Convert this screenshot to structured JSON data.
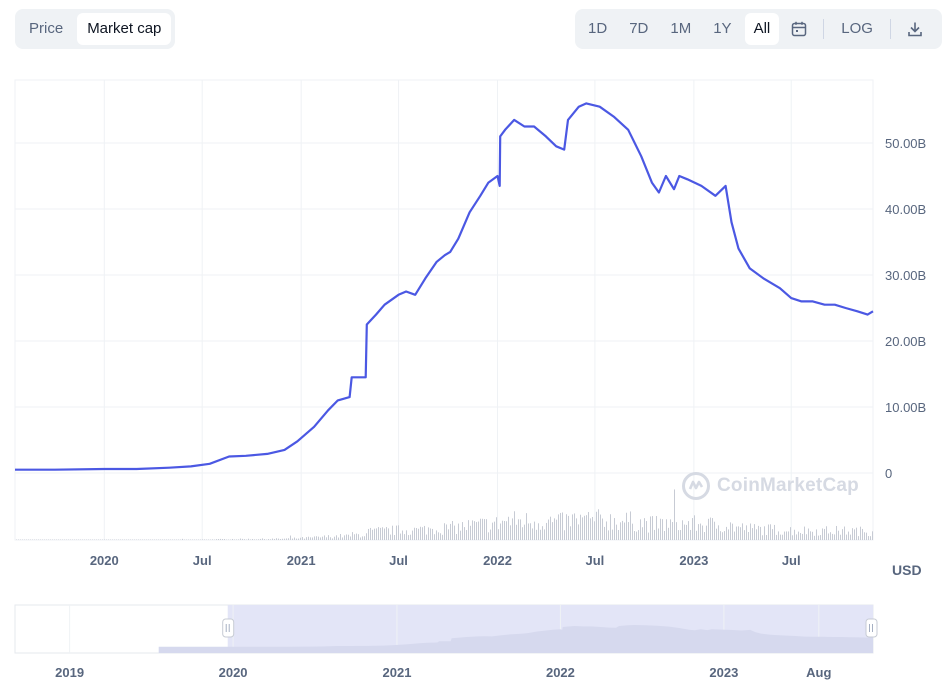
{
  "toolbar": {
    "metric_tabs": [
      {
        "label": "Price",
        "active": false
      },
      {
        "label": "Market cap",
        "active": true
      }
    ],
    "range_tabs": [
      {
        "label": "1D",
        "active": false
      },
      {
        "label": "7D",
        "active": false
      },
      {
        "label": "1M",
        "active": false
      },
      {
        "label": "1Y",
        "active": false
      },
      {
        "label": "All",
        "active": true
      }
    ],
    "calendar_icon": "calendar-icon",
    "log_label": "LOG",
    "download_icon": "download-icon"
  },
  "watermark": "CoinMarketCap",
  "currency_label": "USD",
  "colors": {
    "line": "#4b58e3",
    "volume": "#c7cbd4",
    "navigator_fill": "#e3e5f7",
    "navigator_area": "#d6d9ee",
    "grid": "#eff2f5"
  },
  "chart_data": {
    "type": "line",
    "ylabel_ticks": [
      "0",
      "10.00B",
      "20.00B",
      "30.00B",
      "40.00B",
      "50.00B"
    ],
    "ylim": [
      0,
      58.5
    ],
    "xlim": [
      "2019-07-19",
      "2023-11-30"
    ],
    "x_ticks": [
      {
        "date": "2020-01-01",
        "label": "2020"
      },
      {
        "date": "2020-07-01",
        "label": "Jul"
      },
      {
        "date": "2021-01-01",
        "label": "2021"
      },
      {
        "date": "2021-07-01",
        "label": "Jul"
      },
      {
        "date": "2022-01-01",
        "label": "2022"
      },
      {
        "date": "2022-07-01",
        "label": "Jul"
      },
      {
        "date": "2023-01-01",
        "label": "2023"
      },
      {
        "date": "2023-07-01",
        "label": "Jul"
      }
    ],
    "series": [
      {
        "unit": "B USD",
        "points": [
          [
            "2019-07-19",
            0.5
          ],
          [
            "2019-10-01",
            0.5
          ],
          [
            "2020-01-01",
            0.6
          ],
          [
            "2020-03-01",
            0.6
          ],
          [
            "2020-05-01",
            0.8
          ],
          [
            "2020-06-10",
            1.0
          ],
          [
            "2020-07-15",
            1.4
          ],
          [
            "2020-08-20",
            2.5
          ],
          [
            "2020-09-20",
            2.6
          ],
          [
            "2020-10-30",
            2.9
          ],
          [
            "2020-12-01",
            3.5
          ],
          [
            "2020-12-25",
            4.8
          ],
          [
            "2021-01-25",
            7.0
          ],
          [
            "2021-02-20",
            9.5
          ],
          [
            "2021-03-10",
            11.0
          ],
          [
            "2021-04-01",
            11.5
          ],
          [
            "2021-04-05",
            14.5
          ],
          [
            "2021-05-01",
            14.5
          ],
          [
            "2021-05-03",
            22.5
          ],
          [
            "2021-05-20",
            24.0
          ],
          [
            "2021-06-05",
            25.5
          ],
          [
            "2021-07-01",
            27.0
          ],
          [
            "2021-07-15",
            27.5
          ],
          [
            "2021-08-01",
            27.0
          ],
          [
            "2021-08-20",
            29.5
          ],
          [
            "2021-09-10",
            32.0
          ],
          [
            "2021-09-25",
            33.0
          ],
          [
            "2021-10-05",
            33.5
          ],
          [
            "2021-10-20",
            35.5
          ],
          [
            "2021-11-10",
            39.5
          ],
          [
            "2021-11-30",
            42.0
          ],
          [
            "2021-12-15",
            44.0
          ],
          [
            "2022-01-01",
            45.0
          ],
          [
            "2022-01-05",
            43.5
          ],
          [
            "2022-01-06",
            51.0
          ],
          [
            "2022-01-15",
            52.0
          ],
          [
            "2022-02-01",
            53.5
          ],
          [
            "2022-02-20",
            52.5
          ],
          [
            "2022-03-10",
            52.5
          ],
          [
            "2022-04-01",
            51.0
          ],
          [
            "2022-04-20",
            49.5
          ],
          [
            "2022-05-05",
            49.0
          ],
          [
            "2022-05-12",
            53.5
          ],
          [
            "2022-06-01",
            55.5
          ],
          [
            "2022-06-15",
            56.0
          ],
          [
            "2022-07-10",
            55.5
          ],
          [
            "2022-08-05",
            54.0
          ],
          [
            "2022-09-01",
            52.0
          ],
          [
            "2022-09-25",
            48.0
          ],
          [
            "2022-10-15",
            44.0
          ],
          [
            "2022-10-28",
            42.5
          ],
          [
            "2022-11-10",
            45.0
          ],
          [
            "2022-11-25",
            43.0
          ],
          [
            "2022-12-05",
            45.0
          ],
          [
            "2022-12-20",
            44.5
          ],
          [
            "2023-01-15",
            43.5
          ],
          [
            "2023-02-10",
            42.0
          ],
          [
            "2023-03-01",
            43.5
          ],
          [
            "2023-03-12",
            38.0
          ],
          [
            "2023-03-25",
            34.0
          ],
          [
            "2023-04-15",
            31.0
          ],
          [
            "2023-05-10",
            29.5
          ],
          [
            "2023-06-10",
            28.0
          ],
          [
            "2023-07-01",
            26.5
          ],
          [
            "2023-07-20",
            26.0
          ],
          [
            "2023-08-10",
            26.0
          ],
          [
            "2023-09-01",
            25.5
          ],
          [
            "2023-09-20",
            25.5
          ],
          [
            "2023-10-10",
            25.0
          ],
          [
            "2023-11-01",
            24.5
          ],
          [
            "2023-11-20",
            24.0
          ],
          [
            "2023-11-30",
            24.5
          ]
        ]
      }
    ],
    "volume_bars": "shown",
    "grid": true,
    "navigator": {
      "visible_range": [
        "2019-12-20",
        "2023-11-30"
      ],
      "x_ticks": [
        {
          "date": "2019-01-01",
          "label": "2019"
        },
        {
          "date": "2020-01-01",
          "label": "2020"
        },
        {
          "date": "2021-01-01",
          "label": "2021"
        },
        {
          "date": "2022-01-01",
          "label": "2022"
        },
        {
          "date": "2023-01-01",
          "label": "2023"
        },
        {
          "date": "2023-08-01",
          "label": "Aug"
        }
      ]
    }
  }
}
